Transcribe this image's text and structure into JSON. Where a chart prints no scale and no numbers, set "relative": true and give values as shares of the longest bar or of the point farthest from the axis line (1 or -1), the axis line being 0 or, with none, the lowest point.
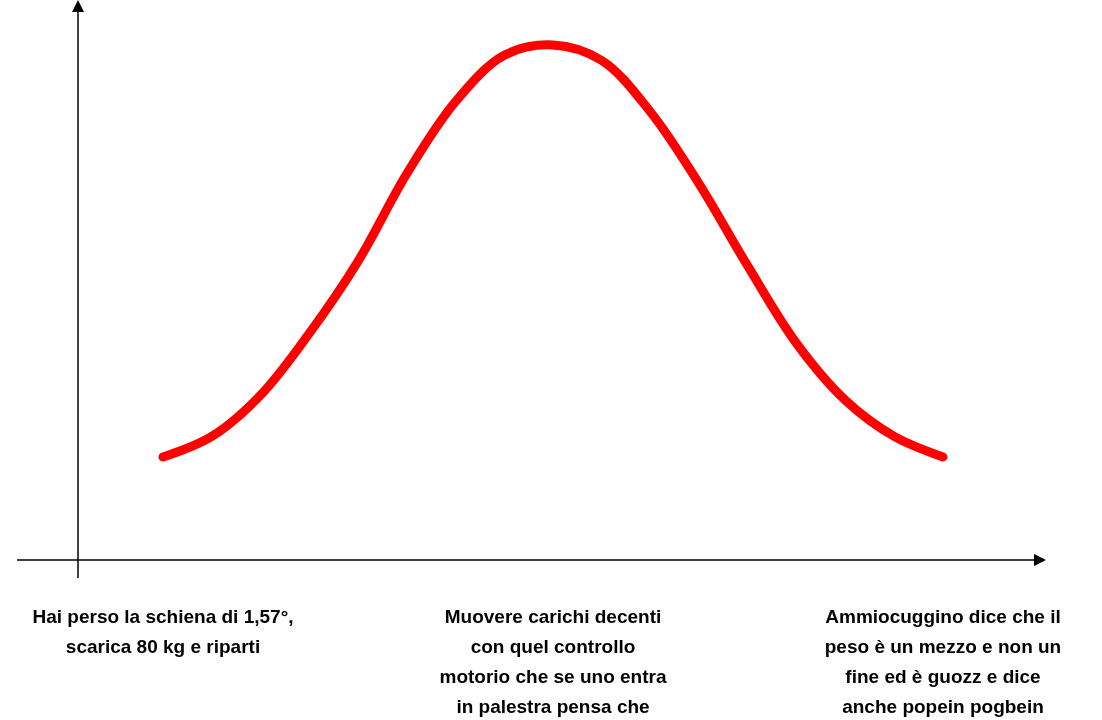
{
  "chart_data": {
    "type": "line",
    "relative": true,
    "categories": [
      "Hai perso la schiena di 1,57°,\nscarica 80 kg e riparti",
      null,
      null,
      null,
      null,
      null,
      null,
      null,
      "Muovere carichi decenti\ncon quel controllo\nmotorio che se uno entra\nin palestra pensa che",
      null,
      null,
      null,
      null,
      null,
      null,
      null,
      "Ammiocuggino dice che il\npeso è un mezzo e non un\nfine ed è guozz e dice\nanche popein pogbein"
    ],
    "series": [
      {
        "color": "#ff0000",
        "values": [
          0.2,
          0.24,
          0.32,
          0.44,
          0.58,
          0.75,
          0.89,
          0.98,
          1.0,
          0.97,
          0.87,
          0.73,
          0.57,
          0.42,
          0.31,
          0.24,
          0.2
        ]
      }
    ],
    "marker": "none",
    "line_style": "solid",
    "grid": false,
    "legend": false
  }
}
